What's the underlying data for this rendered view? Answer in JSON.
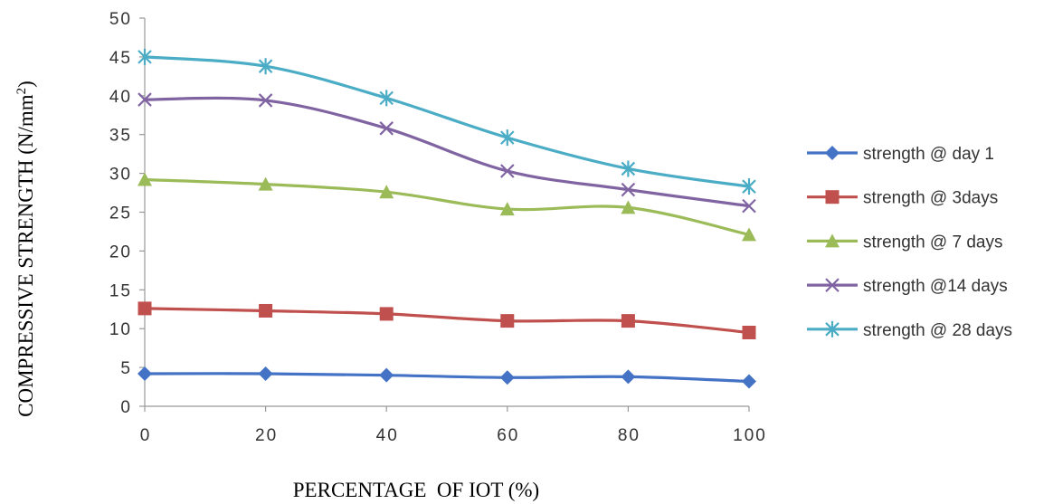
{
  "chart_data": {
    "type": "line",
    "title": "",
    "xlabel": "PERCENTAGE  OF IOT (%)",
    "ylabel": "COMPRESSIVE STRENGTH (N/mm",
    "ylabel_sup": "2",
    "ylabel_tail": ")",
    "x": [
      0,
      20,
      40,
      60,
      80,
      100
    ],
    "xlim": [
      0,
      100
    ],
    "ylim": [
      0,
      50
    ],
    "xticks": [
      "0",
      "20",
      "40",
      "60",
      "80",
      "100"
    ],
    "yticks": [
      "0",
      "5",
      "10",
      "15",
      "20",
      "25",
      "30",
      "35",
      "40",
      "45",
      "50"
    ],
    "grid": false,
    "legend_position": "right",
    "series": [
      {
        "name": "strength @ day 1",
        "color": "#4472C4",
        "marker": "diamond",
        "values": [
          4.2,
          4.2,
          4.0,
          3.7,
          3.8,
          3.2
        ]
      },
      {
        "name": "strength @ 3days",
        "color": "#C0504D",
        "marker": "square",
        "values": [
          12.6,
          12.3,
          11.9,
          11.0,
          11.0,
          9.5
        ]
      },
      {
        "name": "strength @ 7 days",
        "color": "#9BBB59",
        "marker": "triangle",
        "values": [
          29.2,
          28.6,
          27.6,
          25.4,
          25.6,
          22.1
        ]
      },
      {
        "name": "strength @14 days",
        "color": "#8064A2",
        "marker": "x",
        "values": [
          39.5,
          39.4,
          35.8,
          30.3,
          27.9,
          25.8
        ]
      },
      {
        "name": "strength @ 28 days",
        "color": "#4BACC6",
        "marker": "star",
        "values": [
          45.0,
          43.8,
          39.7,
          34.6,
          30.6,
          28.3
        ]
      }
    ]
  }
}
